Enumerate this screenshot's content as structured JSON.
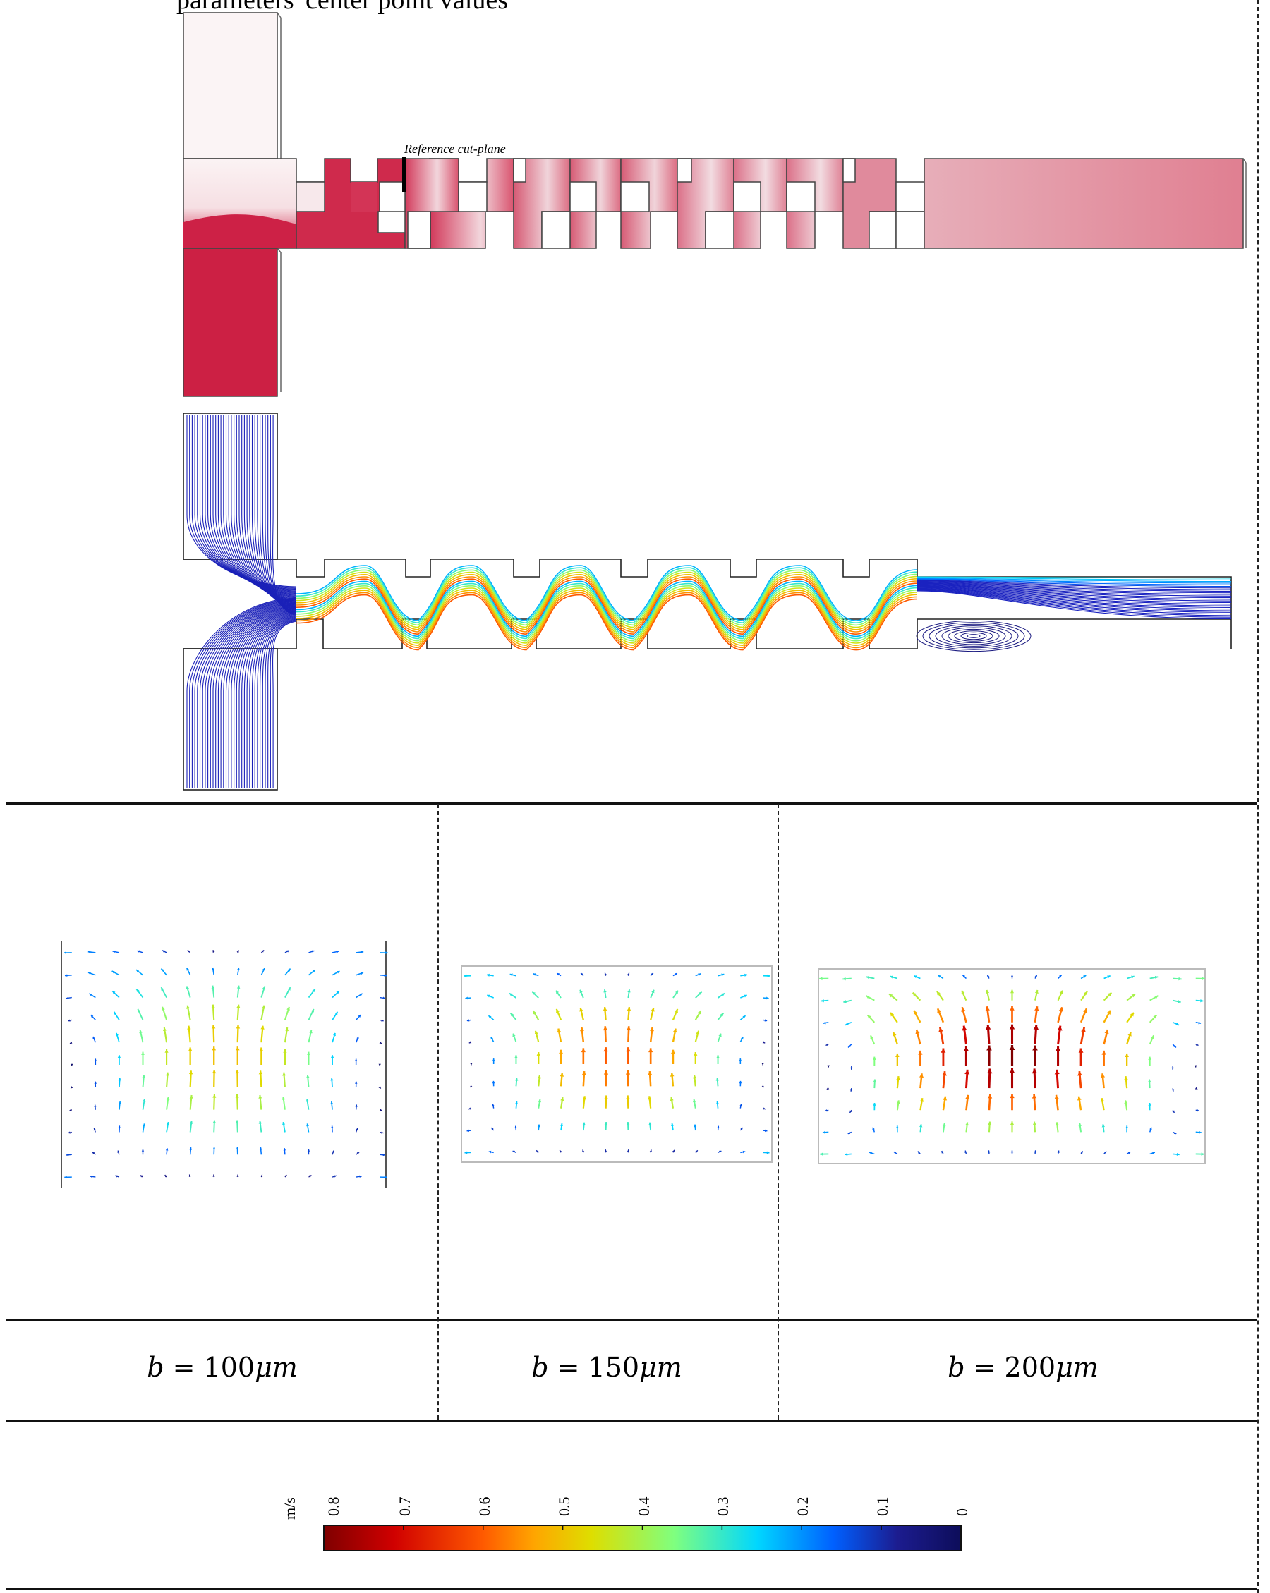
{
  "figure": {
    "top_caption": "parameters' center point values",
    "reference_label": "Reference cut-plane"
  },
  "conditions": [
    {
      "var": "b",
      "op": "=",
      "value": "100",
      "unit": "μm"
    },
    {
      "var": "b",
      "op": "=",
      "value": "150",
      "unit": "μm"
    },
    {
      "var": "b",
      "op": "=",
      "value": "200",
      "unit": "μm"
    }
  ],
  "colorbar": {
    "unit": "m/s",
    "ticks": [
      "0.8",
      "0.7",
      "0.6",
      "0.5",
      "0.4",
      "0.3",
      "0.2",
      "0.1",
      "0"
    ],
    "range": [
      0,
      0.8
    ],
    "colormap": [
      "#7f0000",
      "#d00000",
      "#ff5a00",
      "#ffa500",
      "#dede00",
      "#7fff7f",
      "#00d7ff",
      "#0060ff",
      "#1c1c8f",
      "#0d0d5a"
    ]
  }
}
